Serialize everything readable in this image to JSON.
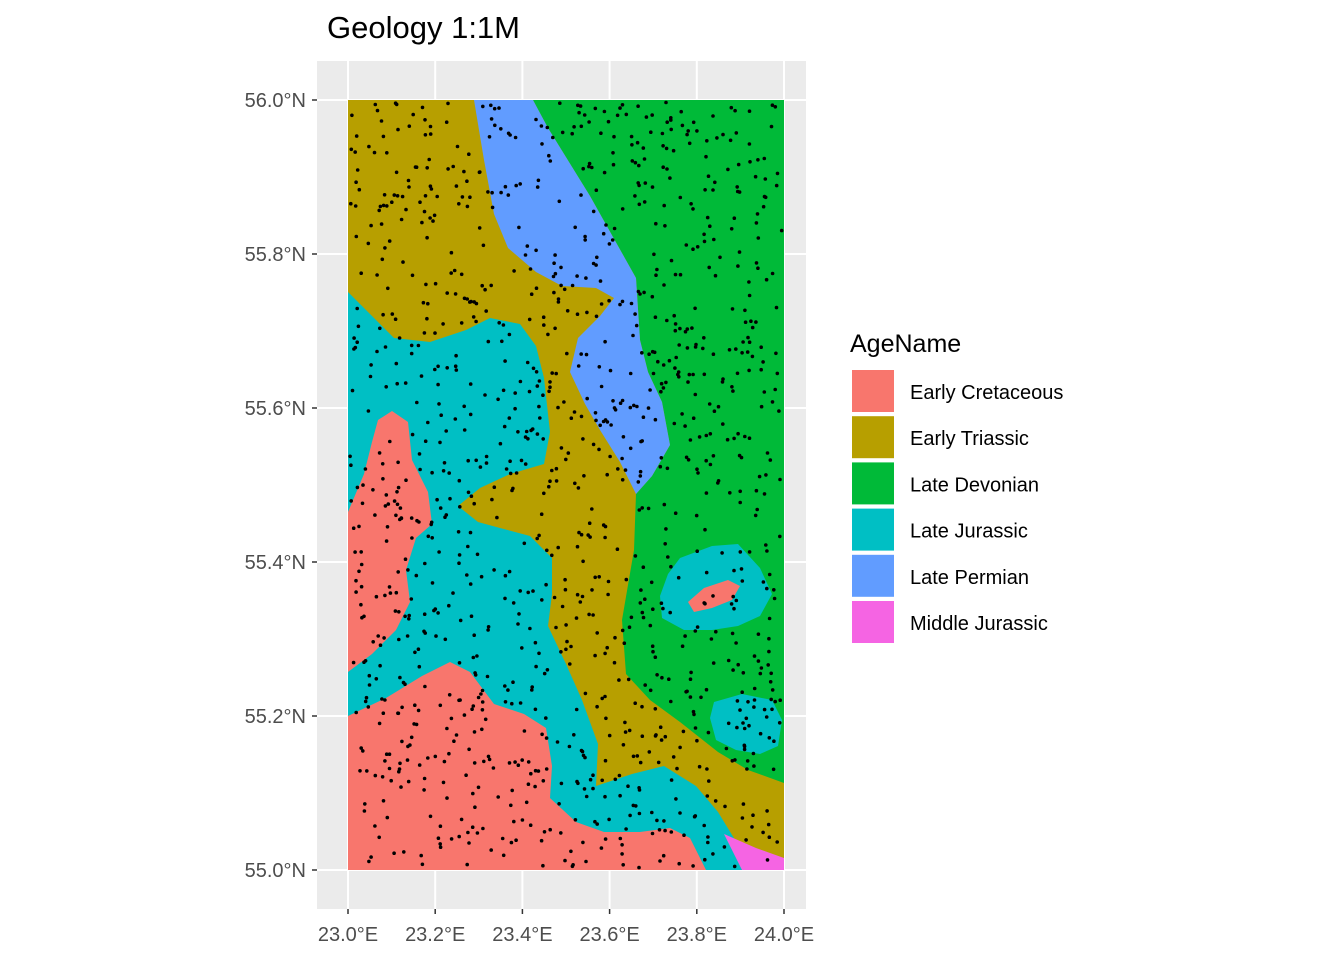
{
  "title": "Geology 1:1M",
  "chart_data": {
    "type": "map",
    "title": "Geology 1:1M",
    "xlim": [
      23.0,
      24.0
    ],
    "ylim": [
      55.0,
      56.0
    ],
    "x_ticks": [
      {
        "value": 23.0,
        "label": "23.0°E"
      },
      {
        "value": 23.2,
        "label": "23.2°E"
      },
      {
        "value": 23.4,
        "label": "23.4°E"
      },
      {
        "value": 23.6,
        "label": "23.6°E"
      },
      {
        "value": 23.8,
        "label": "23.8°E"
      },
      {
        "value": 24.0,
        "label": "24.0°E"
      }
    ],
    "y_ticks": [
      {
        "value": 55.0,
        "label": "55.0°N"
      },
      {
        "value": 55.2,
        "label": "55.2°N"
      },
      {
        "value": 55.4,
        "label": "55.4°N"
      },
      {
        "value": 55.6,
        "label": "55.6°N"
      },
      {
        "value": 55.8,
        "label": "55.8°N"
      },
      {
        "value": 56.0,
        "label": "56.0°N"
      }
    ],
    "grid": true,
    "legend": {
      "title": "AgeName",
      "placement": "right",
      "entries": [
        {
          "label": "Early Cretaceous",
          "color": "#F8766D"
        },
        {
          "label": "Early Triassic",
          "color": "#B79F00"
        },
        {
          "label": "Late Devonian",
          "color": "#00BA38"
        },
        {
          "label": "Late Jurassic",
          "color": "#00BFC4"
        },
        {
          "label": "Late Permian",
          "color": "#619CFF"
        },
        {
          "label": "Middle Jurassic",
          "color": "#F564E3"
        }
      ]
    },
    "points": {
      "count": 1200,
      "color": "#000000"
    }
  }
}
